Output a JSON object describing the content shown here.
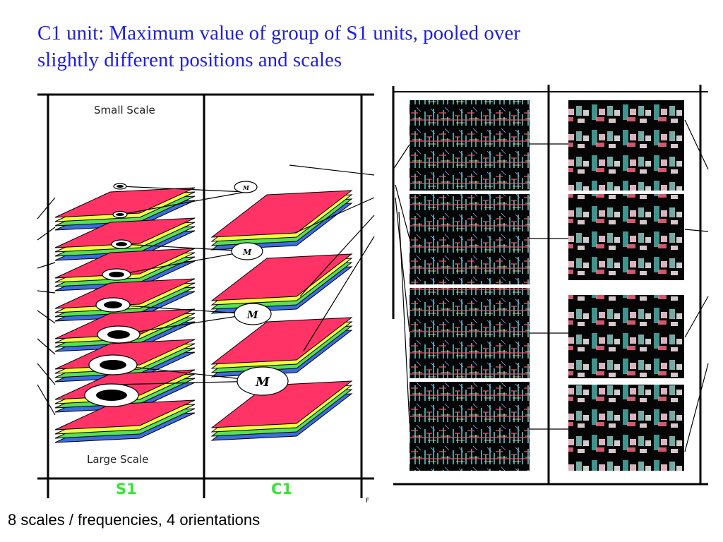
{
  "title": {
    "line1": "C1 unit: Maximum value of group of S1 units, pooled over",
    "line2": "slightly different positions and scales"
  },
  "diagram": {
    "small_scale_label": "Small Scale",
    "large_scale_label": "Large Scale",
    "s1_label": "S1",
    "c1_label": "C1",
    "unit_letter": "M",
    "cut_label": "F"
  },
  "caption": "8 scales / frequencies, 4 orientations",
  "colors": {
    "title": "#1f1fe0",
    "layer_top": "#ff3366",
    "layer_yellow": "#f0ff40",
    "layer_green": "#55e055",
    "layer_blue": "#3a6de0",
    "column_label": "#33e633"
  }
}
